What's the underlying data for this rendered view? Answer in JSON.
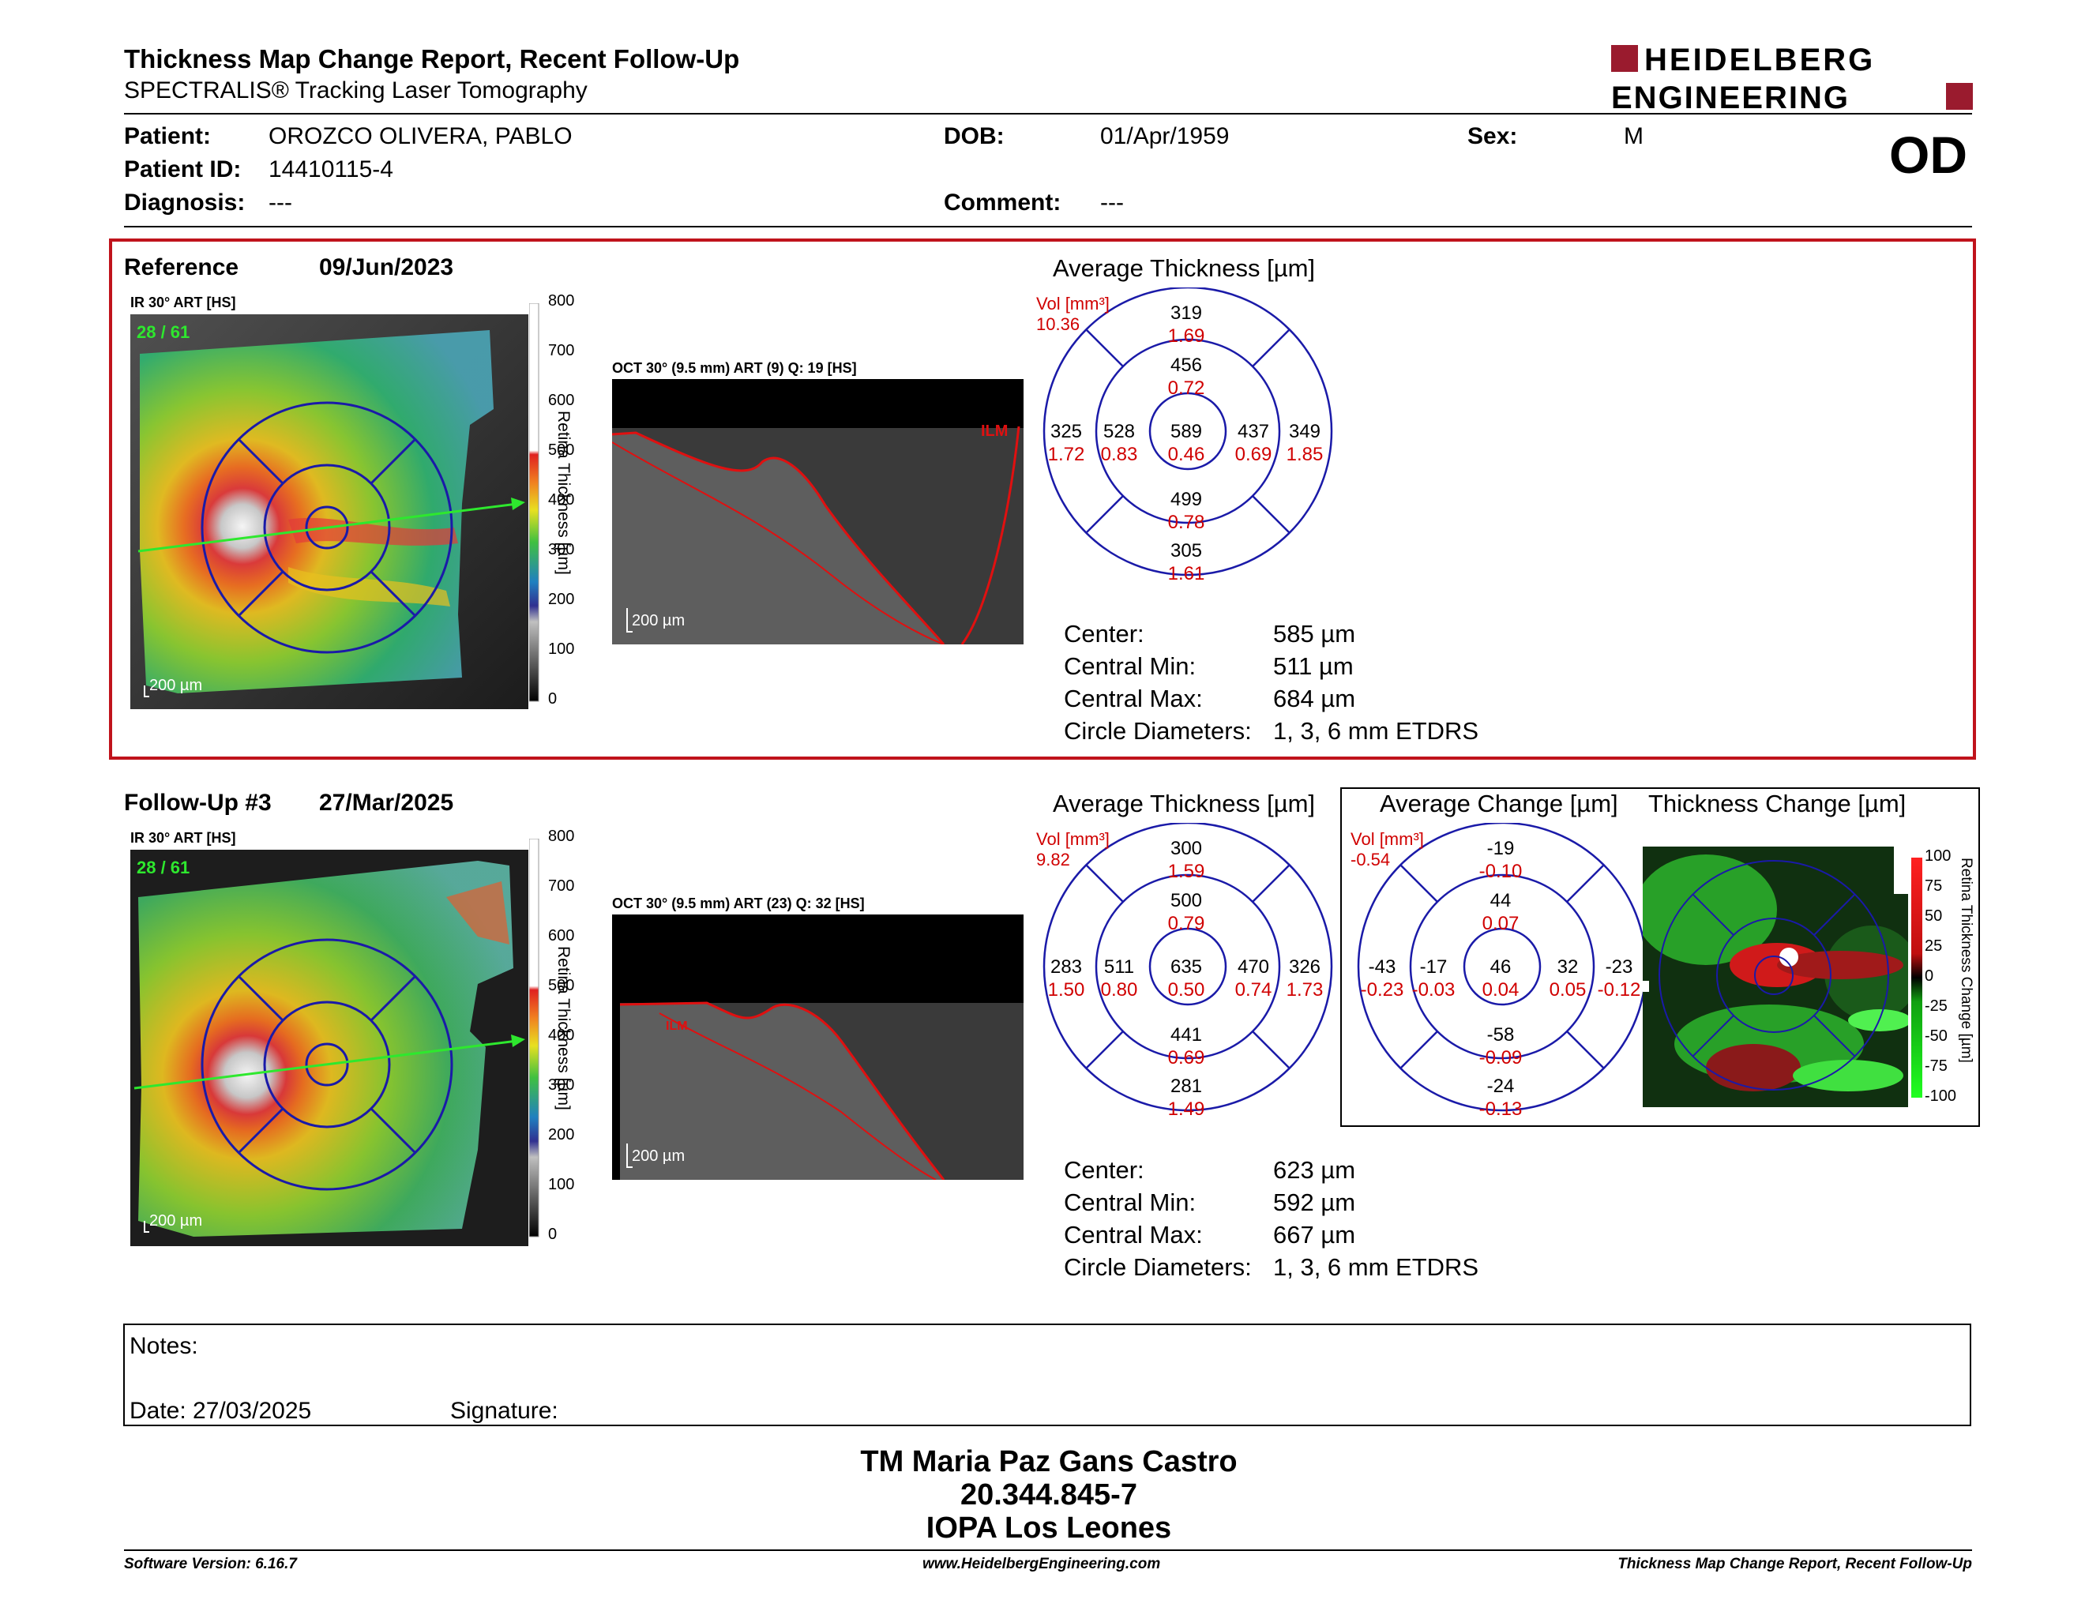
{
  "header": {
    "title": "Thickness Map Change Report, Recent Follow-Up",
    "subtitle": "SPECTRALIS® Tracking Laser Tomography",
    "logo_line1": "HEIDELBERG",
    "logo_line2": "ENGINEERING",
    "eye": "OD"
  },
  "patient": {
    "patient_label": "Patient:",
    "patient_value": "OROZCO OLIVERA, PABLO",
    "id_label": "Patient ID:",
    "id_value": "14410115-4",
    "diagnosis_label": "Diagnosis:",
    "diagnosis_value": "---",
    "dob_label": "DOB:",
    "dob_value": "01/Apr/1959",
    "comment_label": "Comment:",
    "comment_value": "---",
    "sex_label": "Sex:",
    "sex_value": "M"
  },
  "reference": {
    "label": "Reference",
    "date": "09/Jun/2023",
    "ir_label": "IR 30° ART [HS]",
    "frame_counter": "28 / 61",
    "fundus_scale": "200 µm",
    "oct_label": "OCT 30° (9.5 mm) ART (9) Q: 19 [HS]",
    "oct_scale": "200 µm",
    "ilm": "ILM",
    "colorbar_title": "Retina Thickness [µm]",
    "colorbar_ticks": [
      "800",
      "700",
      "600",
      "500",
      "400",
      "300",
      "200",
      "100",
      "0"
    ],
    "etdrs_title": "Average Thickness [µm]",
    "vol_label": "Vol [mm³]",
    "vol_value": "10.36",
    "sectors": {
      "outer_top": {
        "t": "319",
        "v": "1.69"
      },
      "inner_top": {
        "t": "456",
        "v": "0.72"
      },
      "outer_left": {
        "t": "325",
        "v": "1.72"
      },
      "inner_left": {
        "t": "528",
        "v": "0.83"
      },
      "center": {
        "t": "589",
        "v": "0.46"
      },
      "inner_right": {
        "t": "437",
        "v": "0.69"
      },
      "outer_right": {
        "t": "349",
        "v": "1.85"
      },
      "inner_bottom": {
        "t": "499",
        "v": "0.78"
      },
      "outer_bottom": {
        "t": "305",
        "v": "1.61"
      }
    },
    "stats": [
      {
        "label": "Center:",
        "value": "585 µm"
      },
      {
        "label": "Central Min:",
        "value": "511 µm"
      },
      {
        "label": "Central Max:",
        "value": "684 µm"
      },
      {
        "label": "Circle Diameters:",
        "value": "1, 3, 6 mm ETDRS"
      }
    ]
  },
  "followup": {
    "label": "Follow-Up #3",
    "date": "27/Mar/2025",
    "ir_label": "IR 30° ART [HS]",
    "frame_counter": "28 / 61",
    "fundus_scale": "200 µm",
    "oct_label": "OCT 30° (9.5 mm) ART (23) Q: 32 [HS]",
    "oct_scale": "200 µm",
    "ilm": "ILM",
    "colorbar_title": "Retina Thickness [µm]",
    "colorbar_ticks": [
      "800",
      "700",
      "600",
      "500",
      "400",
      "300",
      "200",
      "100",
      "0"
    ],
    "etdrs_title": "Average Thickness [µm]",
    "vol_label": "Vol [mm³]",
    "vol_value": "9.82",
    "sectors": {
      "outer_top": {
        "t": "300",
        "v": "1.59"
      },
      "inner_top": {
        "t": "500",
        "v": "0.79"
      },
      "outer_left": {
        "t": "283",
        "v": "1.50"
      },
      "inner_left": {
        "t": "511",
        "v": "0.80"
      },
      "center": {
        "t": "635",
        "v": "0.50"
      },
      "inner_right": {
        "t": "470",
        "v": "0.74"
      },
      "outer_right": {
        "t": "326",
        "v": "1.73"
      },
      "inner_bottom": {
        "t": "441",
        "v": "0.69"
      },
      "outer_bottom": {
        "t": "281",
        "v": "1.49"
      }
    },
    "stats": [
      {
        "label": "Center:",
        "value": "623 µm"
      },
      {
        "label": "Central Min:",
        "value": "592 µm"
      },
      {
        "label": "Central Max:",
        "value": "667 µm"
      },
      {
        "label": "Circle Diameters:",
        "value": "1, 3, 6 mm ETDRS"
      }
    ]
  },
  "change": {
    "etdrs_title": "Average Change [µm]",
    "vol_label": "Vol [mm³]",
    "vol_value": "-0.54",
    "sectors": {
      "outer_top": {
        "t": "-19",
        "v": "-0.10"
      },
      "inner_top": {
        "t": "44",
        "v": "0.07"
      },
      "outer_left": {
        "t": "-43",
        "v": "-0.23"
      },
      "inner_left": {
        "t": "-17",
        "v": "-0.03"
      },
      "center": {
        "t": "46",
        "v": "0.04"
      },
      "inner_right": {
        "t": "32",
        "v": "0.05"
      },
      "outer_right": {
        "t": "-23",
        "v": "-0.12"
      },
      "inner_bottom": {
        "t": "-58",
        "v": "-0.09"
      },
      "outer_bottom": {
        "t": "-24",
        "v": "-0.13"
      }
    },
    "map_title": "Thickness Change [µm]",
    "colorbar_title": "Retina Thickness Change [µm]",
    "colorbar_ticks": [
      "100",
      "75",
      "50",
      "25",
      "0",
      "-25",
      "-50",
      "-75",
      "-100"
    ]
  },
  "notes": {
    "notes_label": "Notes:",
    "date_label": "Date: 27/03/2025",
    "signature_label": "Signature:"
  },
  "signature": {
    "name": "TM Maria Paz Gans Castro",
    "rut": "20.344.845-7",
    "org": "IOPA Los Leones"
  },
  "footer": {
    "left": "Software Version: 6.16.7",
    "center": "www.HeidelbergEngineering.com",
    "right": "Thickness Map Change Report, Recent Follow-Up"
  },
  "colors": {
    "accent_red": "#c0131c",
    "etdrs_blue": "#1a1aa8",
    "value_red": "#d00000"
  }
}
